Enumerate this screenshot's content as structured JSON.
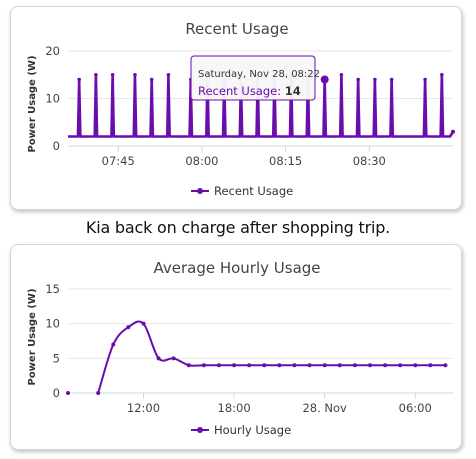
{
  "caption": "Kia back on charge after shopping trip.",
  "colors": {
    "series": "#6a0dad",
    "grid": "#e6e6e6",
    "axis": "#ccd6eb"
  },
  "chart_data": [
    {
      "type": "line",
      "title": "Recent Usage",
      "ylabel": "Power Usage (W)",
      "ylim": [
        0,
        20
      ],
      "yticks": [
        0,
        10,
        20
      ],
      "x_start": "07:36",
      "x_end": "08:45",
      "xtick_labels": [
        "07:45",
        "08:00",
        "08:15",
        "08:30"
      ],
      "xticks": [
        "07:45",
        "08:00",
        "08:15",
        "08:30"
      ],
      "baseline": 2,
      "spikes": [
        "07:38",
        "07:41",
        "07:44",
        "07:48",
        "07:51",
        "07:54",
        "07:58",
        "08:01",
        "08:04",
        "08:07",
        "08:10",
        "08:13",
        "08:16",
        "08:19",
        "08:22",
        "08:25",
        "08:28",
        "08:31",
        "08:34",
        "08:40",
        "08:43"
      ],
      "spike_values": [
        14,
        15,
        15,
        15,
        14,
        15,
        14,
        15,
        15,
        14,
        15,
        15,
        15,
        15,
        14,
        15,
        14,
        14,
        14,
        14,
        15
      ],
      "end_point": [
        "08:45",
        3
      ],
      "legend": "Recent Usage",
      "tooltip": {
        "date": "Saturday, Nov 28, 08:22",
        "series": "Recent Usage",
        "value": "14"
      }
    },
    {
      "type": "line",
      "title": "Average Hourly Usage",
      "ylabel": "Power Usage (W)",
      "ylim": [
        0,
        15
      ],
      "yticks": [
        0,
        5,
        10,
        15
      ],
      "x_start": "2020-11-27T07:00",
      "x_end": "2020-11-28T08:30",
      "xtick_labels": [
        "12:00",
        "18:00",
        "28. Nov",
        "06:00"
      ],
      "xticks": [
        "2020-11-27T12:00",
        "2020-11-27T18:00",
        "2020-11-28T00:00",
        "2020-11-28T06:00"
      ],
      "x": [
        "2020-11-27T07:00",
        "2020-11-27T09:00",
        "2020-11-27T10:00",
        "2020-11-27T11:00",
        "2020-11-27T12:00",
        "2020-11-27T13:00",
        "2020-11-27T14:00",
        "2020-11-27T15:00",
        "2020-11-27T16:00",
        "2020-11-27T17:00",
        "2020-11-27T18:00",
        "2020-11-27T19:00",
        "2020-11-27T20:00",
        "2020-11-27T21:00",
        "2020-11-27T22:00",
        "2020-11-27T23:00",
        "2020-11-28T00:00",
        "2020-11-28T01:00",
        "2020-11-28T02:00",
        "2020-11-28T03:00",
        "2020-11-28T04:00",
        "2020-11-28T05:00",
        "2020-11-28T06:00",
        "2020-11-28T07:00",
        "2020-11-28T08:00"
      ],
      "y": [
        0,
        0,
        7,
        9.5,
        10,
        5,
        5,
        4,
        4,
        4,
        4,
        4,
        4,
        4,
        4,
        4,
        4,
        4,
        4,
        4,
        4,
        4,
        4,
        4,
        4
      ],
      "legend": "Hourly Usage"
    }
  ]
}
